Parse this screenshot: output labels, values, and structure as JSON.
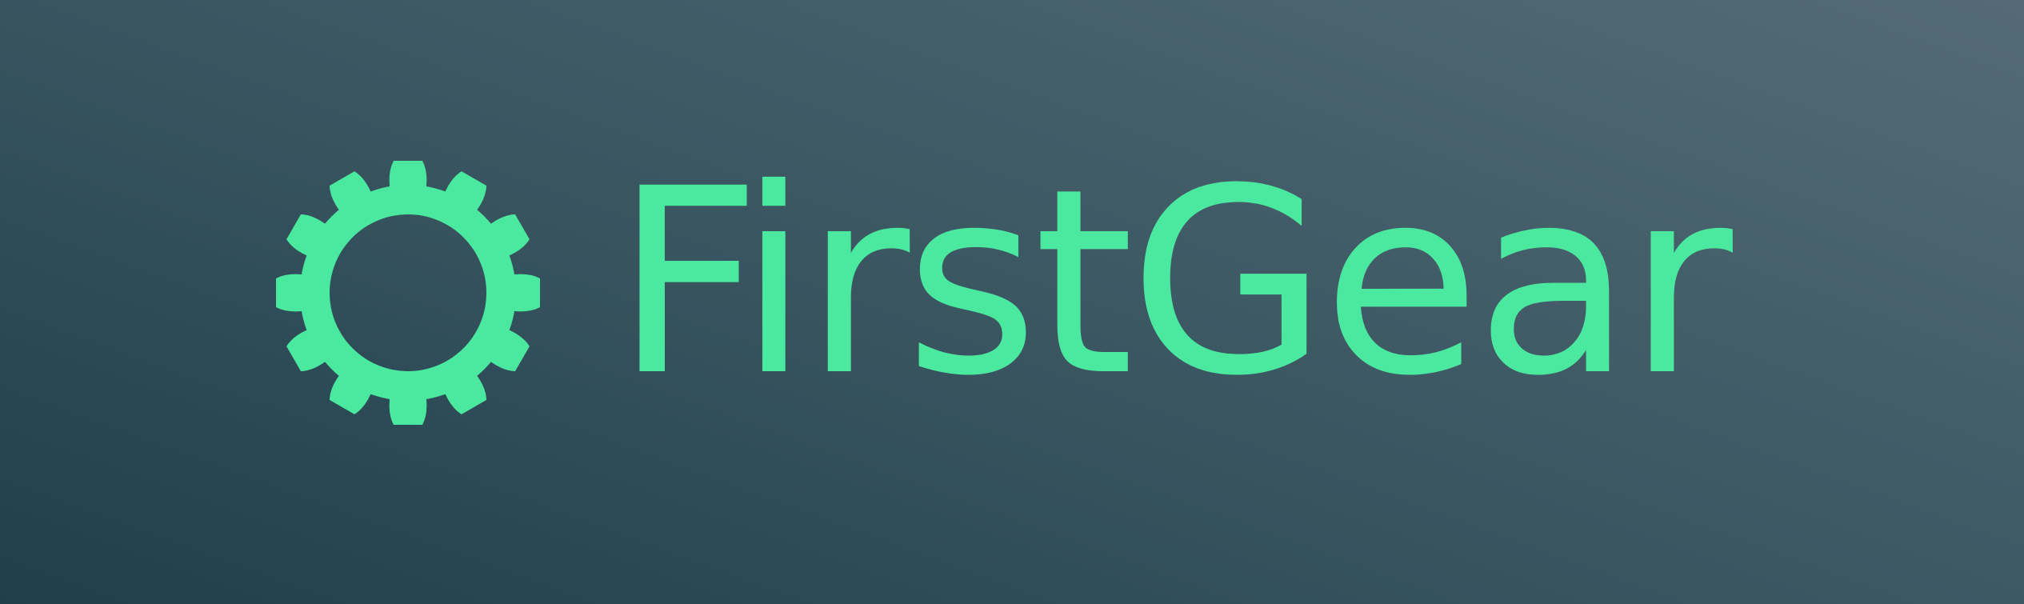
{
  "brand": {
    "name": "FirstGear",
    "logo_icon": "gear-icon",
    "accent_color": "#4be89f",
    "background_gradient": [
      "#1f3f4b",
      "#546b77"
    ]
  }
}
